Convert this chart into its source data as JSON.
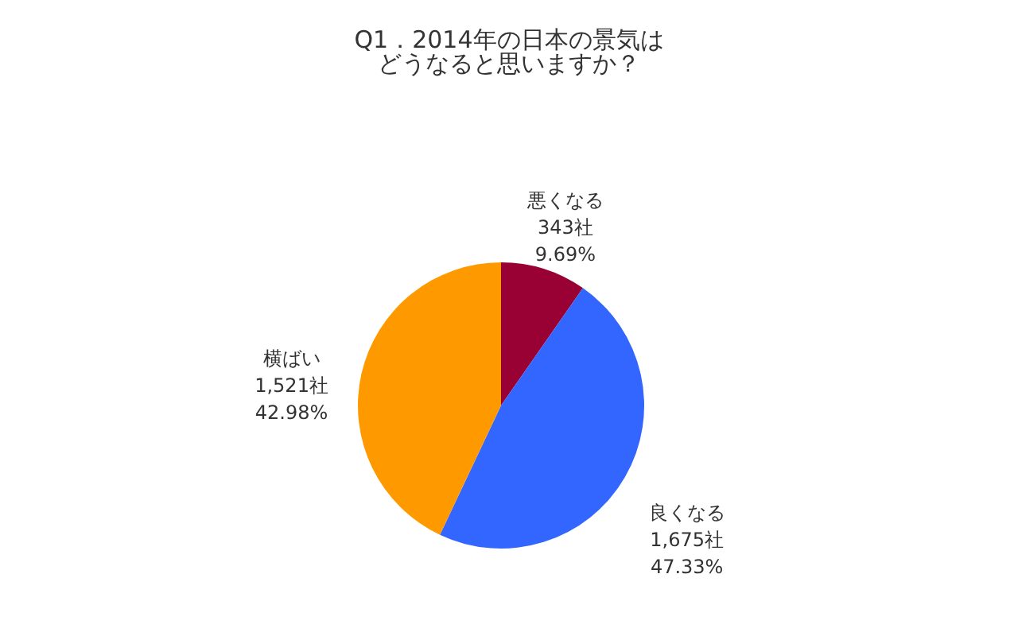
{
  "chart_data": {
    "type": "pie",
    "title": "Q1．2014年の日本の景気は",
    "subtitle": "どうなると思いますか？",
    "categories": [
      "悪くなる",
      "良くなる",
      "横ばい"
    ],
    "values": [
      343,
      1675,
      1521
    ],
    "value_labels": [
      "343社\n9.69%",
      "1,675社\n47.33%",
      "1,521社\n42.98%"
    ],
    "colors": [
      "#990033",
      "#3366ff",
      "#ff9900"
    ],
    "legend": false
  }
}
